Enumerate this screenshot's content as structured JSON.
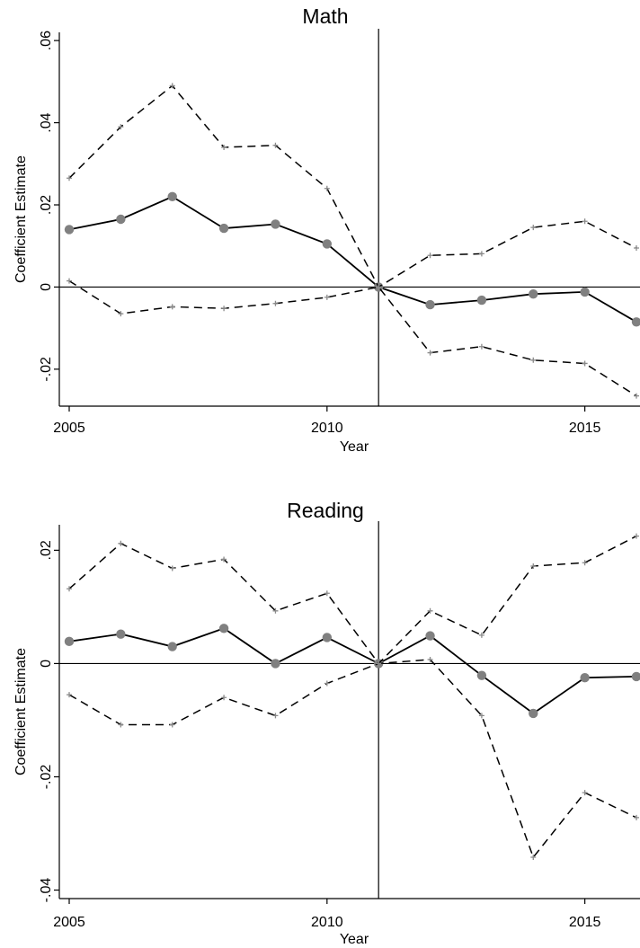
{
  "chart_data": [
    {
      "type": "line",
      "title": "Math",
      "xlabel": "Year",
      "ylabel": "Coefficient Estimate",
      "xlim": [
        2005,
        2016
      ],
      "ylim": [
        -0.029,
        0.062
      ],
      "xticks": [
        2005,
        2010,
        2015
      ],
      "xtick_labels": [
        "2005",
        "2010",
        "2015"
      ],
      "yticks": [
        -0.02,
        0,
        0.02,
        0.04,
        0.06
      ],
      "ytick_labels": [
        "-.02",
        "0",
        ".02",
        ".04",
        ".06"
      ],
      "reference_x": 2011,
      "reference_y": 0,
      "x": [
        2005,
        2006,
        2007,
        2008,
        2009,
        2010,
        2011,
        2012,
        2013,
        2014,
        2015,
        2016
      ],
      "series": [
        {
          "role": "estimate",
          "values": [
            0.014,
            0.0165,
            0.022,
            0.0143,
            0.0153,
            0.0105,
            0,
            -0.0043,
            -0.0032,
            -0.0017,
            -0.0012,
            -0.0085
          ]
        },
        {
          "role": "upper",
          "values": [
            0.0265,
            0.039,
            0.049,
            0.034,
            0.0345,
            0.024,
            0,
            0.0077,
            0.0081,
            0.0145,
            0.016,
            0.0095
          ]
        },
        {
          "role": "lower",
          "values": [
            0.0015,
            -0.0065,
            -0.0048,
            -0.0052,
            -0.004,
            -0.0025,
            0,
            -0.016,
            -0.0145,
            -0.0178,
            -0.0186,
            -0.0265
          ]
        }
      ],
      "grid": false,
      "legend": "none"
    },
    {
      "type": "line",
      "title": "Reading",
      "xlabel": "Year",
      "ylabel": "Coefficient Estimate",
      "xlim": [
        2005,
        2016
      ],
      "ylim": [
        -0.0415,
        0.0245
      ],
      "xticks": [
        2005,
        2010,
        2015
      ],
      "xtick_labels": [
        "2005",
        "2010",
        "2015"
      ],
      "yticks": [
        -0.04,
        -0.02,
        0,
        0.02
      ],
      "ytick_labels": [
        "-.04",
        "-.02",
        "0",
        ".02"
      ],
      "reference_x": 2011,
      "reference_y": 0,
      "x": [
        2005,
        2006,
        2007,
        2008,
        2009,
        2010,
        2011,
        2012,
        2013,
        2014,
        2015,
        2016
      ],
      "series": [
        {
          "role": "estimate",
          "values": [
            0.0039,
            0.0052,
            0.003,
            0.0062,
            0,
            0.0046,
            0,
            0.0049,
            -0.0021,
            -0.0088,
            -0.0025,
            -0.0023
          ]
        },
        {
          "role": "upper",
          "values": [
            0.0132,
            0.0212,
            0.0168,
            0.0184,
            0.0093,
            0.0124,
            0,
            0.0093,
            0.005,
            0.0172,
            0.0178,
            0.0225
          ]
        },
        {
          "role": "lower",
          "values": [
            -0.0055,
            -0.0108,
            -0.0108,
            -0.006,
            -0.0092,
            -0.0035,
            0,
            0.0007,
            -0.0092,
            -0.0342,
            -0.0228,
            -0.0272
          ]
        }
      ],
      "grid": false,
      "legend": "none"
    }
  ],
  "style": {
    "line_color": "#000000",
    "marker_color": "#808080",
    "ci_marker_color": "#8a8a8a"
  }
}
